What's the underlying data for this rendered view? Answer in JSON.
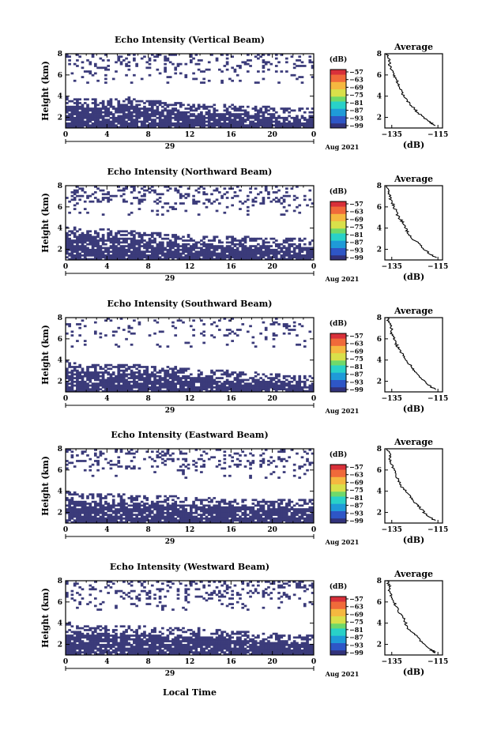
{
  "figure": {
    "xlabel": "Local Time",
    "date_label": "Aug 2021",
    "day_label": "29",
    "ylabel_main": "Height (km)",
    "avg_title": "Average",
    "avg_xlabel": "(dB)",
    "colorbar_unit": "(dB)",
    "x_tick_labels": [
      "0",
      "4",
      "8",
      "12",
      "16",
      "20",
      "0"
    ],
    "y_tick_labels": [
      "2",
      "4",
      "6",
      "8"
    ],
    "avg_x_tick_labels": [
      "−135",
      "−115"
    ],
    "colorbar_tick_labels": [
      "−57",
      "−63",
      "−69",
      "−75",
      "−81",
      "−87",
      "−93",
      "−99"
    ]
  },
  "colors": {
    "low_echo": "#3b3b7a",
    "colormap": [
      "#32327a",
      "#2e56c6",
      "#1f9bd8",
      "#29d1c8",
      "#6fd96a",
      "#d9e04a",
      "#f5b840",
      "#f06a3a",
      "#d8303a"
    ]
  },
  "chart_data": [
    {
      "type": "heatmap",
      "title": "Echo Intensity (Vertical Beam)",
      "x_range_hours": [
        0,
        24
      ],
      "x_ticks": [
        0,
        4,
        8,
        12,
        16,
        20,
        24
      ],
      "y_range_km": [
        1,
        8
      ],
      "y_ticks": [
        2,
        4,
        6,
        8
      ],
      "color_range_db": [
        -99,
        -57
      ],
      "low_layer_top_km": [
        3.6,
        3.5,
        3.5,
        3.6,
        3.4,
        3.2,
        3.0,
        2.9,
        2.9,
        2.8,
        2.7,
        2.6,
        2.6
      ],
      "upper_echo_density": 0.18,
      "average_profile": {
        "height_km": [
          1.2,
          1.5,
          2.0,
          2.5,
          3.0,
          3.5,
          4.0,
          4.5,
          5.0,
          5.5,
          6.0,
          6.5,
          7.0,
          7.5,
          8.0
        ],
        "db": [
          -116,
          -118,
          -121,
          -124,
          -126,
          -128,
          -130,
          -131,
          -132,
          -133,
          -134,
          -135,
          -136,
          -136,
          -137
        ],
        "xlim": [
          -138,
          -113
        ],
        "ylim": [
          1,
          8
        ]
      }
    },
    {
      "type": "heatmap",
      "title": "Echo Intensity (Northward Beam)",
      "x_range_hours": [
        0,
        24
      ],
      "x_ticks": [
        0,
        4,
        8,
        12,
        16,
        20,
        24
      ],
      "y_range_km": [
        1,
        8
      ],
      "y_ticks": [
        2,
        4,
        6,
        8
      ],
      "color_range_db": [
        -99,
        -57
      ],
      "low_layer_top_km": [
        3.9,
        3.7,
        3.6,
        3.5,
        3.3,
        3.2,
        3.1,
        3.0,
        2.9,
        2.9,
        2.8,
        2.8,
        2.7
      ],
      "upper_echo_density": 0.2,
      "average_profile": {
        "height_km": [
          1.2,
          1.5,
          2.0,
          2.5,
          3.0,
          3.5,
          4.0,
          4.5,
          5.0,
          5.5,
          6.0,
          6.5,
          7.0,
          7.5,
          8.0
        ],
        "db": [
          -116,
          -118,
          -121,
          -123,
          -126,
          -128,
          -129,
          -130,
          -132,
          -133,
          -134,
          -135,
          -136,
          -136,
          -137
        ],
        "xlim": [
          -138,
          -113
        ],
        "ylim": [
          1,
          8
        ]
      }
    },
    {
      "type": "heatmap",
      "title": "Echo Intensity (Southward Beam)",
      "x_range_hours": [
        0,
        24
      ],
      "x_ticks": [
        0,
        4,
        8,
        12,
        16,
        20,
        24
      ],
      "y_range_km": [
        1,
        8
      ],
      "y_ticks": [
        2,
        4,
        6,
        8
      ],
      "color_range_db": [
        -99,
        -57
      ],
      "low_layer_top_km": [
        3.6,
        3.4,
        3.3,
        3.3,
        3.2,
        3.1,
        3.0,
        2.8,
        2.7,
        2.6,
        2.4,
        2.3,
        2.2
      ],
      "upper_echo_density": 0.12,
      "average_profile": {
        "height_km": [
          1.2,
          1.5,
          2.0,
          2.5,
          3.0,
          3.5,
          4.0,
          4.5,
          5.0,
          5.5,
          6.0,
          6.5,
          7.0,
          7.5,
          8.0
        ],
        "db": [
          -116,
          -118,
          -121,
          -123,
          -125,
          -127,
          -129,
          -130,
          -132,
          -133,
          -134,
          -135,
          -135,
          -136,
          -137
        ],
        "xlim": [
          -138,
          -113
        ],
        "ylim": [
          1,
          8
        ]
      }
    },
    {
      "type": "heatmap",
      "title": "Echo Intensity (Eastward Beam)",
      "x_range_hours": [
        0,
        24
      ],
      "x_ticks": [
        0,
        4,
        8,
        12,
        16,
        20,
        24
      ],
      "y_range_km": [
        1,
        8
      ],
      "y_ticks": [
        2,
        4,
        6,
        8
      ],
      "color_range_db": [
        -99,
        -57
      ],
      "low_layer_top_km": [
        3.7,
        3.5,
        3.5,
        3.4,
        3.3,
        3.3,
        3.2,
        3.1,
        3.0,
        3.0,
        2.9,
        2.9,
        2.9
      ],
      "upper_echo_density": 0.2,
      "average_profile": {
        "height_km": [
          1.2,
          1.5,
          2.0,
          2.5,
          3.0,
          3.5,
          4.0,
          4.5,
          5.0,
          5.5,
          6.0,
          6.5,
          7.0,
          7.5,
          8.0
        ],
        "db": [
          -116,
          -118,
          -121,
          -123,
          -125,
          -127,
          -129,
          -131,
          -132,
          -133,
          -134,
          -135,
          -136,
          -136,
          -137
        ],
        "xlim": [
          -138,
          -113
        ],
        "ylim": [
          1,
          8
        ]
      }
    },
    {
      "type": "heatmap",
      "title": "Echo Intensity (Westward Beam)",
      "x_range_hours": [
        0,
        24
      ],
      "x_ticks": [
        0,
        4,
        8,
        12,
        16,
        20,
        24
      ],
      "y_range_km": [
        1,
        8
      ],
      "y_ticks": [
        2,
        4,
        6,
        8
      ],
      "color_range_db": [
        -99,
        -57
      ],
      "low_layer_top_km": [
        3.8,
        3.6,
        3.5,
        3.5,
        3.4,
        3.3,
        3.3,
        3.2,
        3.0,
        2.9,
        2.8,
        2.7,
        2.6
      ],
      "upper_echo_density": 0.22,
      "average_profile": {
        "height_km": [
          1.2,
          1.5,
          2.0,
          2.5,
          3.0,
          3.5,
          4.0,
          4.5,
          5.0,
          5.5,
          6.0,
          6.5,
          7.0,
          7.5,
          8.0
        ],
        "db": [
          -116,
          -118,
          -121,
          -123,
          -125,
          -128,
          -129,
          -130,
          -132,
          -133,
          -134,
          -135,
          -136,
          -136,
          -137
        ],
        "xlim": [
          -138,
          -113
        ],
        "ylim": [
          1,
          8
        ]
      }
    }
  ]
}
